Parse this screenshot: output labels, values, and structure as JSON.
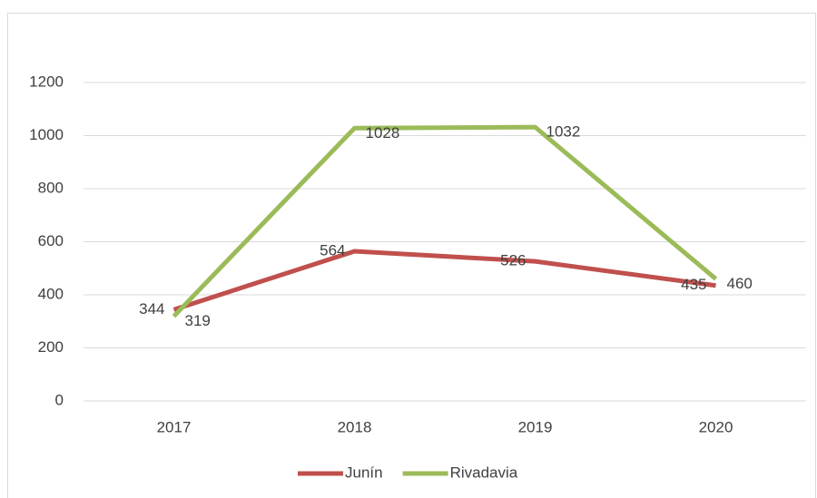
{
  "chart_data": {
    "type": "line",
    "categories": [
      "2017",
      "2018",
      "2019",
      "2020"
    ],
    "series": [
      {
        "name": "Junín",
        "color": "#c0504d",
        "values": [
          344,
          564,
          526,
          435
        ]
      },
      {
        "name": "Rivadavia",
        "color": "#9bbb59",
        "values": [
          319,
          1028,
          1032,
          460
        ]
      }
    ],
    "ylim": [
      0,
      1200
    ],
    "yticks": [
      0,
      200,
      400,
      600,
      800,
      1000,
      1200
    ],
    "grid": true,
    "legend": "bottom"
  }
}
